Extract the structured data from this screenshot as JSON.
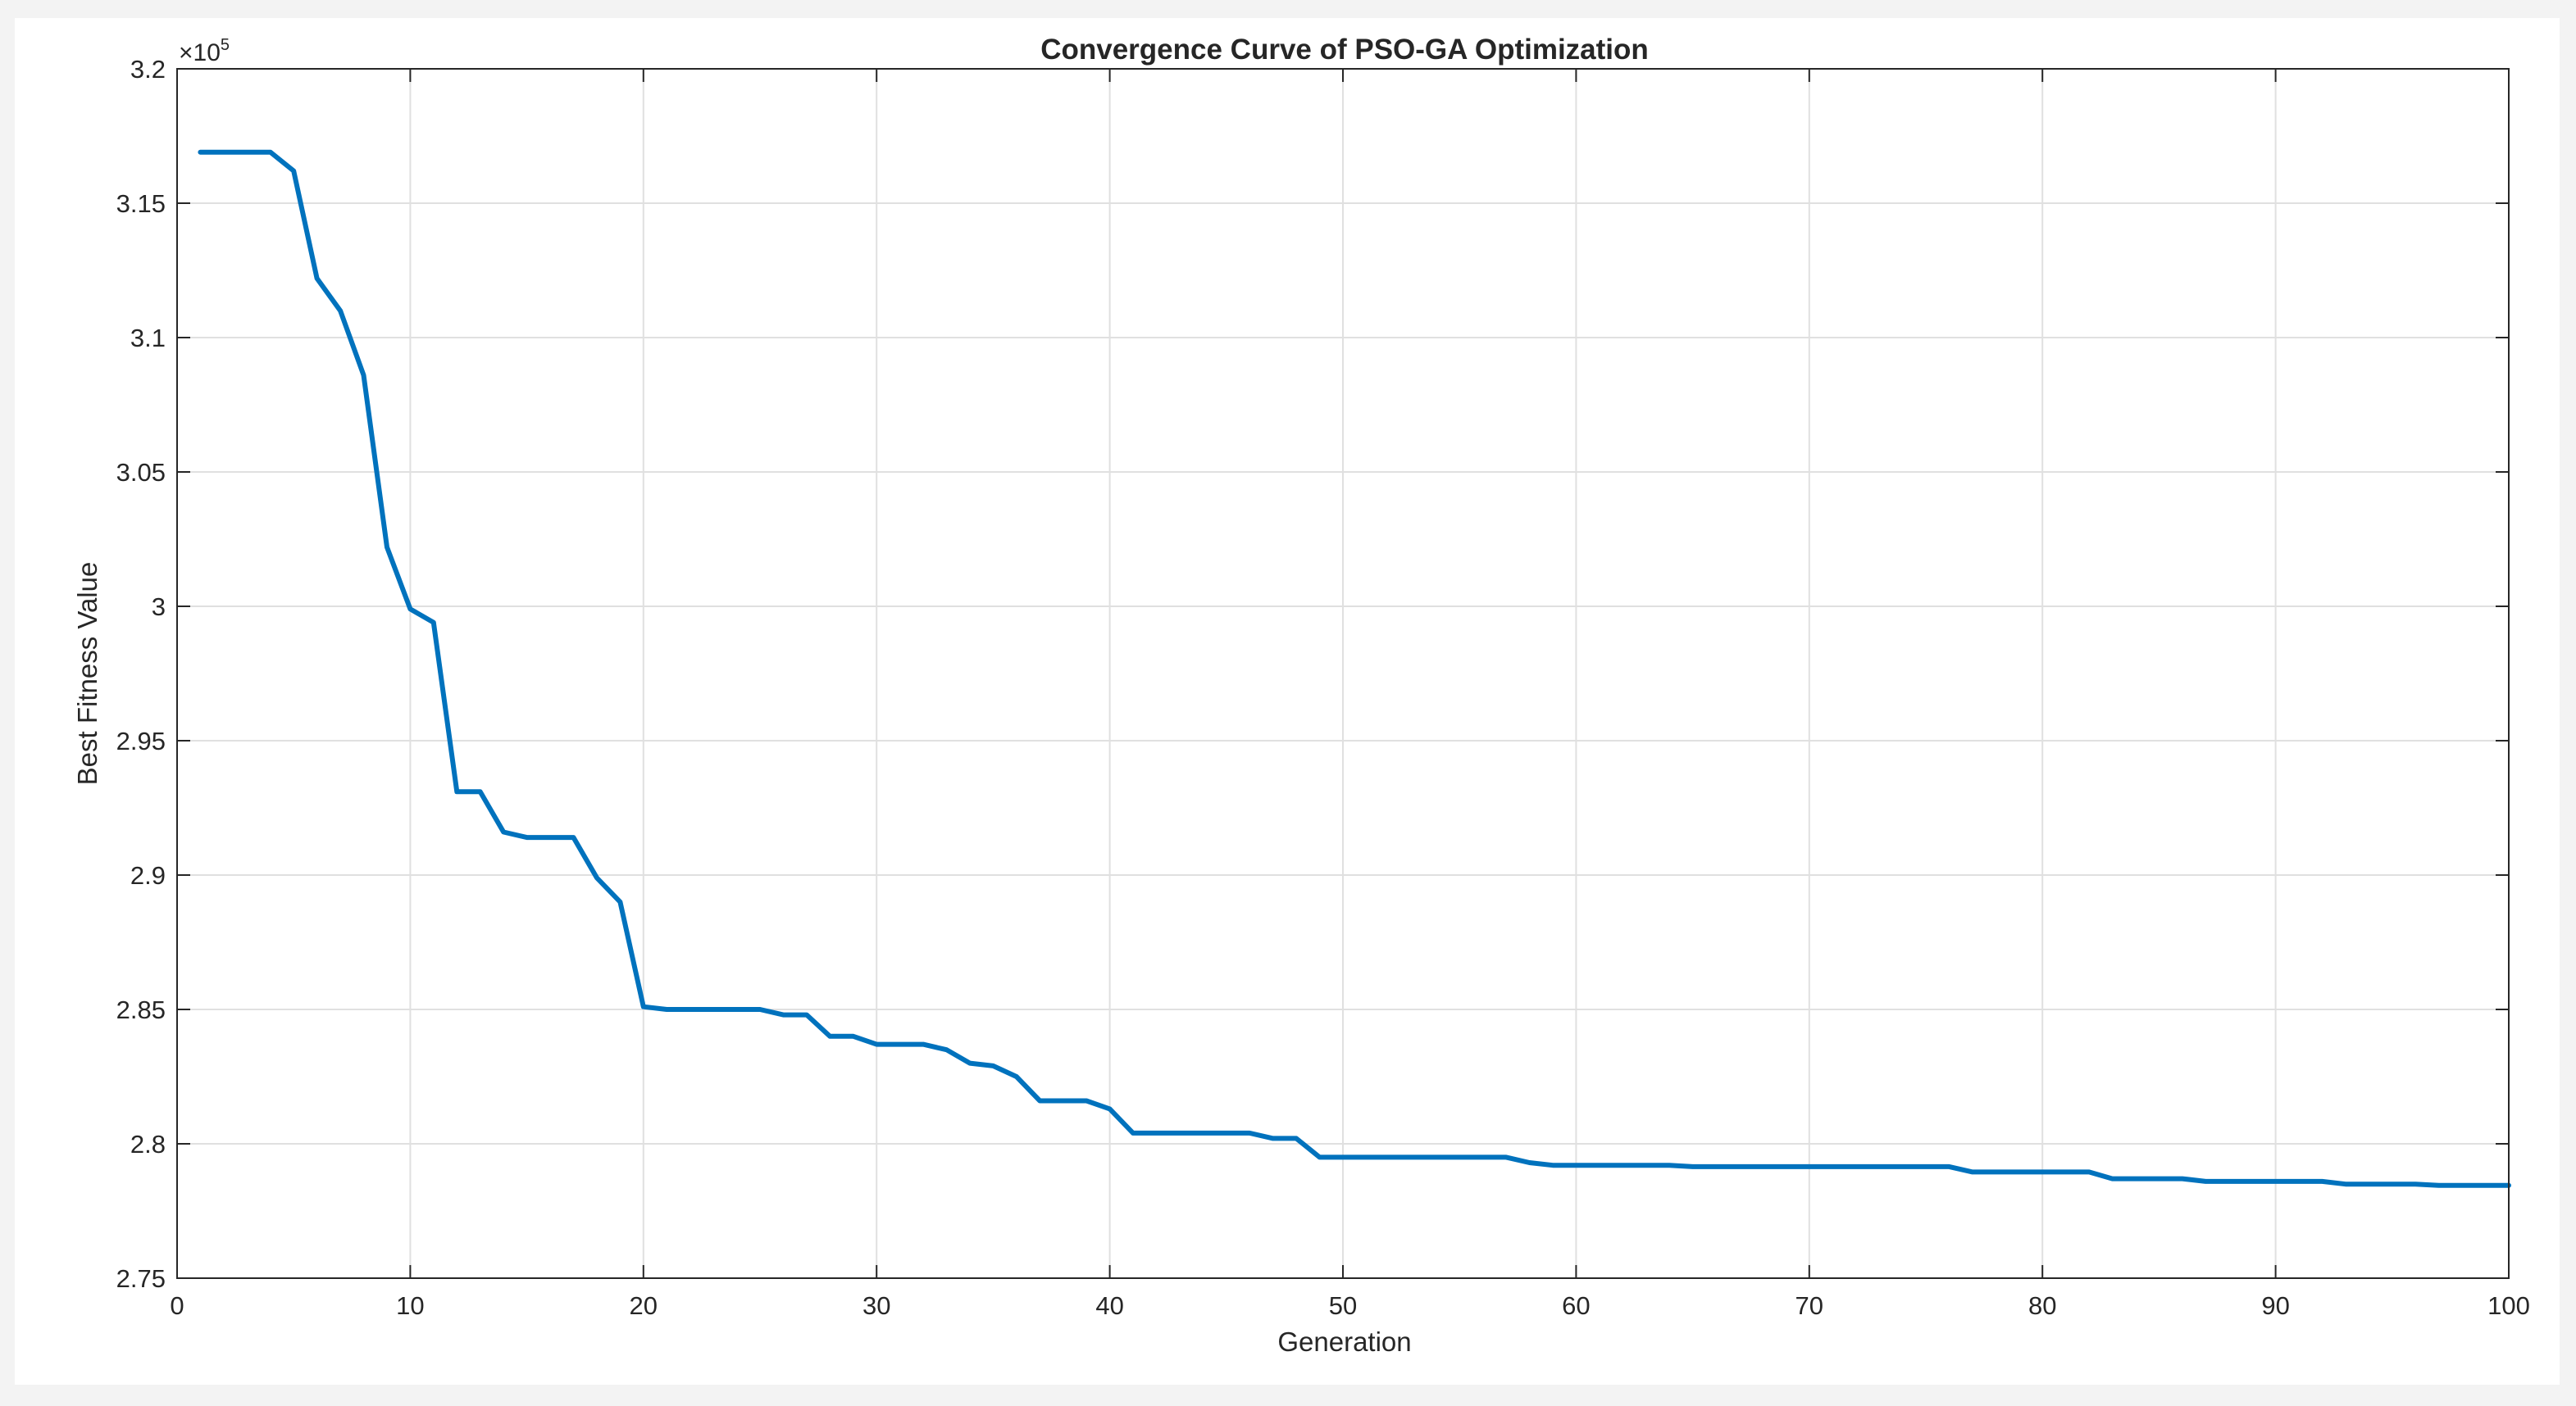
{
  "chart_data": {
    "type": "line",
    "title": "Convergence Curve of PSO-GA Optimization",
    "xlabel": "Generation",
    "ylabel": "Best Fitness Value",
    "y_exponent_label": "×10",
    "y_exponent_power": "5",
    "xlim": [
      0,
      100
    ],
    "ylim": [
      2.75,
      3.2
    ],
    "grid": true,
    "x_ticks": [
      0,
      10,
      20,
      30,
      40,
      50,
      60,
      70,
      80,
      90,
      100
    ],
    "x_tick_labels": [
      "0",
      "10",
      "20",
      "30",
      "40",
      "50",
      "60",
      "70",
      "80",
      "90",
      "100"
    ],
    "y_ticks": [
      2.75,
      2.8,
      2.85,
      2.9,
      2.95,
      3.0,
      3.05,
      3.1,
      3.15,
      3.2
    ],
    "y_tick_labels": [
      "2.75",
      "2.8",
      "2.85",
      "2.9",
      "2.95",
      "3",
      "3.05",
      "3.1",
      "3.15",
      "3.2"
    ],
    "series_color": "#0072BD",
    "series": [
      {
        "x": [
          1,
          2,
          3,
          4,
          5,
          6,
          7,
          8,
          9,
          10,
          11,
          12,
          13,
          14,
          15,
          16,
          17,
          18,
          19,
          20,
          21,
          22,
          23,
          24,
          25,
          26,
          27,
          28,
          29,
          30,
          31,
          32,
          33,
          34,
          35,
          36,
          37,
          38,
          39,
          40,
          41,
          42,
          43,
          44,
          45,
          46,
          47,
          48,
          49,
          50,
          51,
          52,
          53,
          54,
          55,
          56,
          57,
          58,
          59,
          60,
          61,
          62,
          63,
          64,
          65,
          66,
          67,
          68,
          69,
          70,
          71,
          72,
          73,
          74,
          75,
          76,
          77,
          78,
          79,
          80,
          81,
          82,
          83,
          84,
          85,
          86,
          87,
          88,
          89,
          90,
          91,
          92,
          93,
          94,
          95,
          96,
          97,
          98,
          99,
          100
        ],
        "values": [
          3.169,
          3.169,
          3.169,
          3.169,
          3.162,
          3.122,
          3.11,
          3.086,
          3.022,
          2.999,
          2.994,
          2.931,
          2.931,
          2.916,
          2.914,
          2.914,
          2.914,
          2.899,
          2.89,
          2.851,
          2.85,
          2.85,
          2.85,
          2.85,
          2.85,
          2.848,
          2.848,
          2.84,
          2.84,
          2.837,
          2.837,
          2.837,
          2.835,
          2.83,
          2.829,
          2.825,
          2.816,
          2.816,
          2.816,
          2.813,
          2.804,
          2.804,
          2.804,
          2.804,
          2.804,
          2.804,
          2.802,
          2.802,
          2.795,
          2.795,
          2.795,
          2.795,
          2.795,
          2.795,
          2.795,
          2.795,
          2.795,
          2.793,
          2.792,
          2.792,
          2.792,
          2.792,
          2.792,
          2.792,
          2.7915,
          2.7915,
          2.7915,
          2.7915,
          2.7915,
          2.7915,
          2.7915,
          2.7915,
          2.7915,
          2.7915,
          2.7915,
          2.7915,
          2.7895,
          2.7895,
          2.7895,
          2.7895,
          2.7895,
          2.7895,
          2.787,
          2.787,
          2.787,
          2.787,
          2.786,
          2.786,
          2.786,
          2.786,
          2.786,
          2.786,
          2.785,
          2.785,
          2.785,
          2.785,
          2.7845,
          2.7845,
          2.7845,
          2.7845
        ]
      }
    ]
  }
}
